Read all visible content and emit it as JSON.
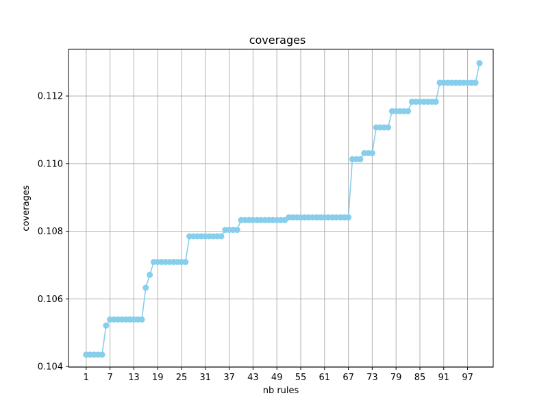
{
  "chart_data": {
    "type": "line",
    "title": "coverages",
    "xlabel": "nb rules",
    "ylabel": "coverages",
    "xlim": [
      -3.45,
      103.45
    ],
    "ylim": [
      0.10398,
      0.11338
    ],
    "xticks": [
      1,
      7,
      13,
      19,
      25,
      31,
      37,
      43,
      49,
      55,
      61,
      67,
      73,
      79,
      85,
      91,
      97
    ],
    "yticks": [
      0.104,
      0.106,
      0.108,
      0.11,
      0.112
    ],
    "ytick_labels": [
      "0.104",
      "0.106",
      "0.108",
      "0.110",
      "0.112"
    ],
    "grid": true,
    "series": [
      {
        "color": "#87ceeb",
        "marker": "circle",
        "x": [
          1,
          2,
          3,
          4,
          5,
          6,
          7,
          8,
          9,
          10,
          11,
          12,
          13,
          14,
          15,
          16,
          17,
          18,
          19,
          20,
          21,
          22,
          23,
          24,
          25,
          26,
          27,
          28,
          29,
          30,
          31,
          32,
          33,
          34,
          35,
          36,
          37,
          38,
          39,
          40,
          41,
          42,
          43,
          44,
          45,
          46,
          47,
          48,
          49,
          50,
          51,
          52,
          53,
          54,
          55,
          56,
          57,
          58,
          59,
          60,
          61,
          62,
          63,
          64,
          65,
          66,
          67,
          68,
          69,
          70,
          71,
          72,
          73,
          74,
          75,
          76,
          77,
          78,
          79,
          80,
          81,
          82,
          83,
          84,
          85,
          86,
          87,
          88,
          89,
          90,
          91,
          92,
          93,
          94,
          95,
          96,
          97,
          98,
          99,
          100
        ],
        "values": [
          0.10435,
          0.10435,
          0.10435,
          0.10435,
          0.10435,
          0.10521,
          0.10539,
          0.10539,
          0.10539,
          0.10539,
          0.10539,
          0.10539,
          0.10539,
          0.10539,
          0.10539,
          0.10633,
          0.10671,
          0.10709,
          0.10709,
          0.10709,
          0.10709,
          0.10709,
          0.10709,
          0.10709,
          0.10709,
          0.10709,
          0.10785,
          0.10785,
          0.10785,
          0.10785,
          0.10785,
          0.10785,
          0.10785,
          0.10785,
          0.10785,
          0.10804,
          0.10804,
          0.10804,
          0.10804,
          0.10833,
          0.10833,
          0.10833,
          0.10833,
          0.10833,
          0.10833,
          0.10833,
          0.10833,
          0.10833,
          0.10833,
          0.10833,
          0.10833,
          0.10841,
          0.10841,
          0.10841,
          0.10841,
          0.10841,
          0.10841,
          0.10841,
          0.10841,
          0.10841,
          0.10841,
          0.10841,
          0.10841,
          0.10841,
          0.10841,
          0.10841,
          0.10841,
          0.11013,
          0.11013,
          0.11013,
          0.11031,
          0.11031,
          0.11031,
          0.11107,
          0.11107,
          0.11107,
          0.11107,
          0.11155,
          0.11155,
          0.11155,
          0.11155,
          0.11155,
          0.11183,
          0.11183,
          0.11183,
          0.11183,
          0.11183,
          0.11183,
          0.11183,
          0.11239,
          0.11239,
          0.11239,
          0.11239,
          0.11239,
          0.11239,
          0.11239,
          0.11239,
          0.11239,
          0.11239,
          0.11297
        ]
      }
    ]
  }
}
